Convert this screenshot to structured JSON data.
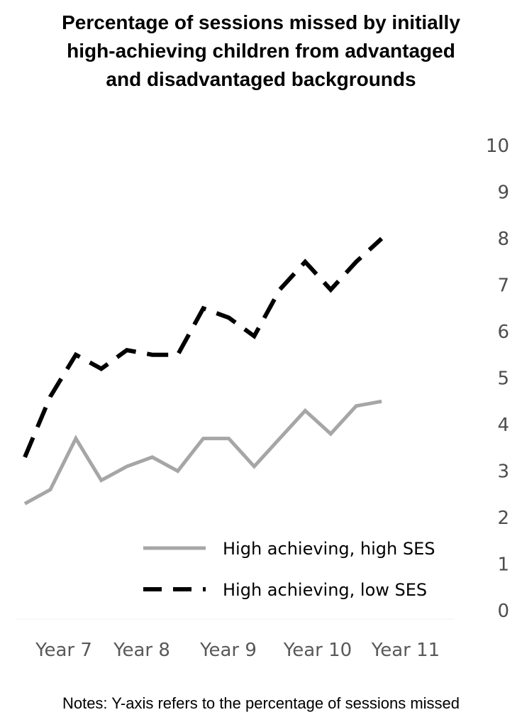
{
  "chart_data": {
    "type": "line",
    "title": "Percentage of sessions missed by initially\nhigh-achieving children from advantaged\nand disadvantaged backgrounds",
    "note": "Notes: Y-axis refers to the percentage of sessions missed",
    "x_labels": [
      "Year 7",
      "Year 8",
      "Year 9",
      "Year 10",
      "Year 11"
    ],
    "ylim": [
      0,
      10
    ],
    "y_ticks": [
      "0",
      "1",
      "2",
      "3",
      "4",
      "5",
      "6",
      "7",
      "8",
      "9",
      "10"
    ],
    "y_axis_side": "right",
    "grid": false,
    "legend_position": "bottom-right",
    "series": [
      {
        "name": "High achieving, high SES",
        "style": "solid",
        "color": "#a6a6a6",
        "x": [
          0,
          0.5,
          1,
          1.5,
          2,
          2.5,
          3,
          3.5,
          4,
          4.5,
          5,
          5.5,
          6,
          6.5,
          7,
          7.5,
          8
        ],
        "values": [
          2.3,
          2.6,
          3.7,
          2.8,
          3.1,
          3.3,
          3.0,
          3.7,
          3.7,
          3.1,
          3.7,
          4.3,
          3.8,
          4.4,
          4.5,
          null,
          null
        ]
      },
      {
        "name": "High achieving, low SES",
        "style": "dashed",
        "color": "#000000",
        "x": [
          0,
          0.5,
          1,
          1.5,
          2,
          2.5,
          3,
          3.5,
          4,
          4.5,
          5,
          5.5,
          6,
          6.5,
          7
        ],
        "values": [
          3.3,
          4.6,
          5.5,
          5.2,
          5.6,
          5.5,
          5.5,
          6.5,
          6.3,
          5.9,
          6.9,
          7.5,
          6.9,
          7.5,
          8.0
        ]
      }
    ]
  }
}
